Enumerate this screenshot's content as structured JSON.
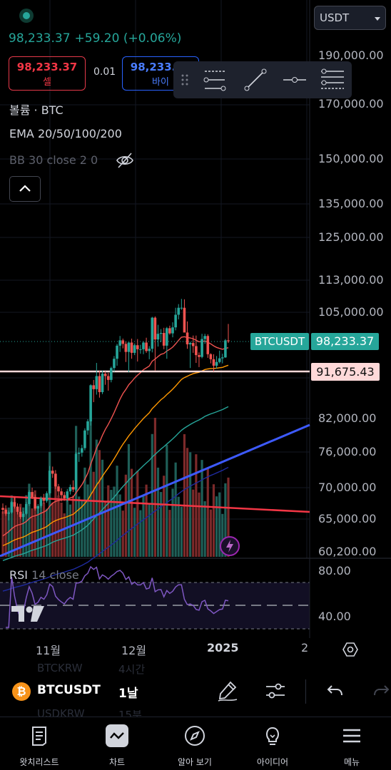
{
  "header": {
    "price": "98,233.37",
    "change": "+59.20 (+0.06%)",
    "sell_price": "98,233.37",
    "sell_label": "셀",
    "spread": "0.01",
    "buy_price": "98,233.37",
    "buy_label": "바이"
  },
  "symbol_select": {
    "value": "USDT"
  },
  "legend": {
    "volume": "볼륨 · BTC",
    "ema": "EMA 20/50/100/200",
    "bb": "BB 30 close 2 0"
  },
  "price_axis": {
    "ticks": [
      "190,000.00",
      "170,000.00",
      "150,000.00",
      "135,000.00",
      "125,000.00",
      "113,000.00",
      "105,000.00",
      "82,000.00",
      "76,000.00",
      "70,000.00",
      "65,000.00",
      "60,200.00"
    ],
    "ticker_label": "BTCUSDT",
    "last_price": "98,233.37",
    "hline_price": "91,675.43"
  },
  "rsi": {
    "label": "RSI",
    "params": "14 close",
    "ticks": [
      "80.00",
      "40.00"
    ]
  },
  "time_axis": {
    "labels": [
      "11월",
      "12월",
      "2025",
      "2"
    ]
  },
  "bottom_toolbar": {
    "symbol": "BTCUSDT",
    "interval": "1날",
    "ghost_symbols": [
      "BTCKRW",
      "USDKRW"
    ],
    "ghost_intervals": [
      "4시간",
      "15분"
    ],
    "coin_glyph": "₿"
  },
  "nav": {
    "items": [
      {
        "label": "왓치리스트",
        "icon": "watchlist-icon"
      },
      {
        "label": "차트",
        "icon": "chart-icon"
      },
      {
        "label": "알아 보기",
        "icon": "compass-icon"
      },
      {
        "label": "아이디어",
        "icon": "lightbulb-icon"
      },
      {
        "label": "메뉴",
        "icon": "menu-icon"
      }
    ]
  },
  "colors": {
    "up": "#26a69a",
    "down": "#ef5350",
    "sell": "#f23645",
    "buy": "#2962ff",
    "background": "#000000",
    "hline_label": "#ffd9d9",
    "trendline": "#3d5afe",
    "rsi_line": "#7e57c2"
  },
  "chart_data": {
    "type": "candlestick",
    "symbol": "BTCUSDT",
    "interval": "1D",
    "y_scale": "log",
    "ylim": [
      60200,
      190000
    ],
    "last_close": 98233.37,
    "horizontal_line": 91675.43,
    "candles_ohlc": [
      [
        66800,
        67500,
        65900,
        66500
      ],
      [
        66500,
        67200,
        65600,
        65900
      ],
      [
        65900,
        66400,
        64900,
        66100
      ],
      [
        66100,
        67900,
        65900,
        67700
      ],
      [
        67700,
        68500,
        66700,
        67000
      ],
      [
        67000,
        67500,
        65800,
        66200
      ],
      [
        66200,
        66900,
        65100,
        65400
      ],
      [
        65400,
        66300,
        64800,
        65900
      ],
      [
        65900,
        67700,
        65700,
        67400
      ],
      [
        67400,
        69600,
        67100,
        69300
      ],
      [
        69300,
        70000,
        68200,
        68500
      ],
      [
        68500,
        68900,
        66400,
        66700
      ],
      [
        66700,
        67400,
        65900,
        67100
      ],
      [
        67100,
        68600,
        66800,
        68300
      ],
      [
        68300,
        69000,
        67500,
        67900
      ],
      [
        67900,
        69400,
        67600,
        69100
      ],
      [
        69100,
        73600,
        68800,
        72800
      ],
      [
        72800,
        73500,
        71600,
        72300
      ],
      [
        72300,
        72900,
        69800,
        70200
      ],
      [
        70200,
        70600,
        68700,
        69400
      ],
      [
        69400,
        69900,
        67800,
        68800
      ],
      [
        68800,
        69300,
        67900,
        68300
      ],
      [
        68300,
        69800,
        67800,
        69400
      ],
      [
        69400,
        70500,
        68900,
        70100
      ],
      [
        70100,
        71200,
        69300,
        69700
      ],
      [
        69700,
        76000,
        69400,
        75700
      ],
      [
        75700,
        76800,
        74300,
        75900
      ],
      [
        75900,
        77300,
        75200,
        76700
      ],
      [
        76700,
        80300,
        76300,
        79900
      ],
      [
        79900,
        82000,
        79100,
        81600
      ],
      [
        81600,
        88900,
        80800,
        88700
      ],
      [
        88700,
        89800,
        85300,
        87900
      ],
      [
        87900,
        93400,
        86800,
        90600
      ],
      [
        90600,
        91700,
        86200,
        87300
      ],
      [
        87300,
        91800,
        86900,
        91100
      ],
      [
        91100,
        91600,
        88800,
        90600
      ],
      [
        90600,
        91300,
        87600,
        89800
      ],
      [
        89800,
        92600,
        89300,
        92300
      ],
      [
        92300,
        94900,
        91500,
        94300
      ],
      [
        94300,
        97600,
        92800,
        97200
      ],
      [
        97200,
        99400,
        95800,
        98400
      ],
      [
        98400,
        98800,
        96600,
        97600
      ],
      [
        97600,
        98100,
        93600,
        95800
      ],
      [
        95800,
        98000,
        91400,
        97900
      ],
      [
        97900,
        98800,
        94300,
        95600
      ],
      [
        95600,
        97700,
        95100,
        97300
      ],
      [
        97300,
        98700,
        93700,
        96400
      ],
      [
        96400,
        97400,
        95400,
        96400
      ],
      [
        96400,
        98200,
        95300,
        97900
      ],
      [
        97900,
        99000,
        95600,
        96000
      ],
      [
        96000,
        97100,
        94200,
        96500
      ],
      [
        96500,
        103900,
        95700,
        103700
      ],
      [
        103700,
        104000,
        91800,
        98600
      ],
      [
        98600,
        102000,
        97000,
        99900
      ],
      [
        99900,
        101000,
        98000,
        100100
      ],
      [
        100100,
        101300,
        96400,
        97200
      ],
      [
        97200,
        101500,
        94300,
        101200
      ],
      [
        101200,
        101800,
        99700,
        100000
      ],
      [
        100000,
        102600,
        99100,
        101400
      ],
      [
        101400,
        106100,
        100700,
        104400
      ],
      [
        104400,
        107000,
        103300,
        106100
      ],
      [
        106100,
        108300,
        105600,
        106100
      ],
      [
        106100,
        108200,
        100500,
        100200
      ],
      [
        100200,
        102800,
        96500,
        97500
      ],
      [
        97500,
        98100,
        92300,
        97800
      ],
      [
        97800,
        99500,
        95600,
        97100
      ],
      [
        97100,
        99500,
        93400,
        95100
      ],
      [
        95100,
        95700,
        92500,
        94700
      ],
      [
        94700,
        99900,
        94400,
        98700
      ],
      [
        98700,
        99900,
        97600,
        99400
      ],
      [
        99400,
        99800,
        94500,
        95300
      ],
      [
        95300,
        95500,
        93300,
        94200
      ],
      [
        94200,
        95300,
        91600,
        92800
      ],
      [
        92800,
        94900,
        92200,
        93600
      ],
      [
        93600,
        96100,
        93300,
        94400
      ],
      [
        94400,
        95400,
        93300,
        94600
      ],
      [
        94600,
        98700,
        94500,
        98400
      ],
      [
        98400,
        102200,
        97800,
        98200
      ]
    ],
    "ema_series": [
      {
        "period": 20,
        "color": "#ef5350"
      },
      {
        "period": 50,
        "color": "#ff9800"
      },
      {
        "period": 100,
        "color": "#26a69a"
      },
      {
        "period": 200,
        "color": "#1e2a9e"
      }
    ],
    "rsi": {
      "period": 14,
      "levels": [
        70,
        50,
        30
      ],
      "ylim": [
        30,
        85
      ]
    }
  }
}
